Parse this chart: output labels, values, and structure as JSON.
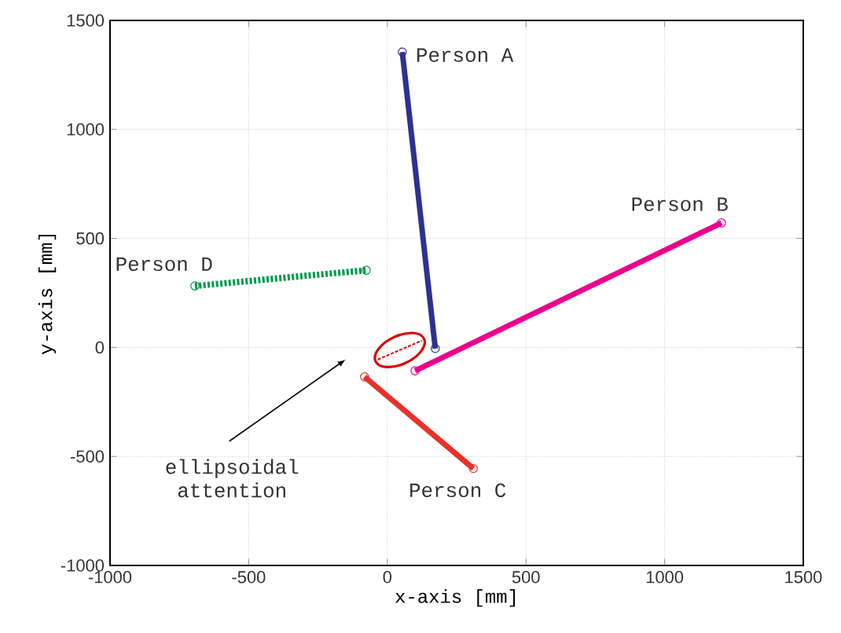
{
  "chart_data": {
    "type": "line",
    "xlabel": "x-axis [mm]",
    "ylabel": "y-axis [mm]",
    "xlim": [
      -1000,
      1500
    ],
    "ylim": [
      -1000,
      1500
    ],
    "xticks": [
      -1000,
      -500,
      0,
      500,
      1000,
      1500
    ],
    "yticks": [
      -1000,
      -500,
      0,
      500,
      1000,
      1500
    ],
    "grid": true,
    "marker": "circle",
    "line_style": "solid",
    "series": [
      {
        "name": "Person A",
        "color": "#2e3192",
        "x": [
          54,
          173
        ],
        "values": [
          1355,
          -5
        ]
      },
      {
        "name": "Person B",
        "color": "#ec008c",
        "x": [
          100,
          1205
        ],
        "values": [
          -107,
          571
        ]
      },
      {
        "name": "Person C",
        "color": "#e8312a",
        "x": [
          -82,
          310
        ],
        "values": [
          -135,
          -555
        ]
      },
      {
        "name": "Person D",
        "color": "#009a4e",
        "x": [
          -694,
          -76
        ],
        "values": [
          282,
          354
        ],
        "line_style": "dotted"
      }
    ],
    "annotations": [
      "ellipsoidal attention"
    ]
  }
}
